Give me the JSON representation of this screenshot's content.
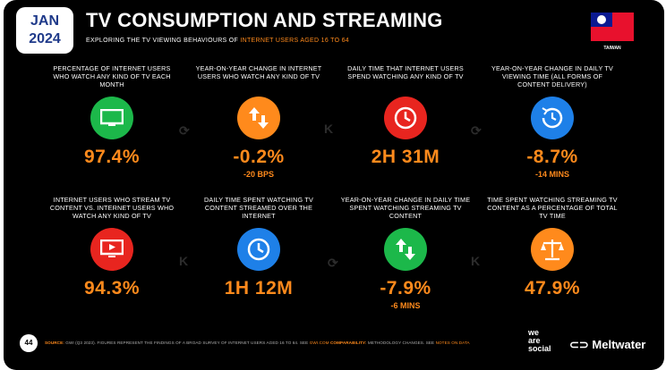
{
  "header": {
    "date_month": "JAN",
    "date_year": "2024",
    "title": "TV CONSUMPTION AND STREAMING",
    "subtitle_pre": "EXPLORING THE TV VIEWING BEHAVIOURS OF ",
    "subtitle_hl": "INTERNET USERS AGED 16 TO 64",
    "country": "TAIWAN"
  },
  "stats": [
    {
      "label": "PERCENTAGE OF INTERNET USERS WHO WATCH ANY KIND OF TV EACH MONTH",
      "value": "97.4%",
      "sub": "",
      "icon": "tv-icon",
      "color": "#1cb84a"
    },
    {
      "label": "YEAR-ON-YEAR CHANGE IN INTERNET USERS WHO WATCH ANY KIND OF TV",
      "value": "-0.2%",
      "sub": "-20 BPS",
      "icon": "up-down-arrows-icon",
      "color": "#ff8a1c"
    },
    {
      "label": "DAILY TIME THAT INTERNET USERS SPEND WATCHING ANY KIND OF TV",
      "value": "2H 31M",
      "sub": "",
      "icon": "clock-icon",
      "color": "#e8251f"
    },
    {
      "label": "YEAR-ON-YEAR CHANGE IN DAILY TV VIEWING TIME (ALL FORMS OF CONTENT DELIVERY)",
      "value": "-8.7%",
      "sub": "-14 MINS",
      "icon": "clock-refresh-icon",
      "color": "#1e80e8"
    },
    {
      "label": "INTERNET USERS WHO STREAM TV CONTENT vs. INTERNET USERS WHO WATCH ANY KIND OF TV",
      "value": "94.3%",
      "sub": "",
      "icon": "streaming-tv-icon",
      "color": "#e8251f"
    },
    {
      "label": "DAILY TIME SPENT WATCHING TV CONTENT STREAMED OVER THE INTERNET",
      "value": "1H 12M",
      "sub": "",
      "icon": "clock-icon",
      "color": "#1e80e8"
    },
    {
      "label": "YEAR-ON-YEAR CHANGE IN DAILY TIME SPENT WATCHING STREAMING TV CONTENT",
      "value": "-7.9%",
      "sub": "-6 MINS",
      "icon": "up-down-arrows-icon",
      "color": "#1cb84a"
    },
    {
      "label": "TIME SPENT WATCHING STREAMING TV CONTENT AS A PERCENTAGE OF TOTAL TV TIME",
      "value": "47.9%",
      "sub": "",
      "icon": "scales-icon",
      "color": "#ff8a1c"
    }
  ],
  "footer": {
    "page_number": "44",
    "source_label": "SOURCE:",
    "source_text": " GWI (Q3 2023). FIGURES REPRESENT THE FINDINGS OF A BROAD SURVEY OF INTERNET USERS AGED 16 TO 64. SEE ",
    "source_link": "GWI.COM",
    "comp_label": " COMPARABILITY:",
    "comp_text": " METHODOLOGY CHANGES. SEE ",
    "comp_link": "NOTES ON DATA",
    "brand_1": "we",
    "brand_2": "are",
    "brand_3": "social",
    "brand_mw": "Meltwater"
  }
}
